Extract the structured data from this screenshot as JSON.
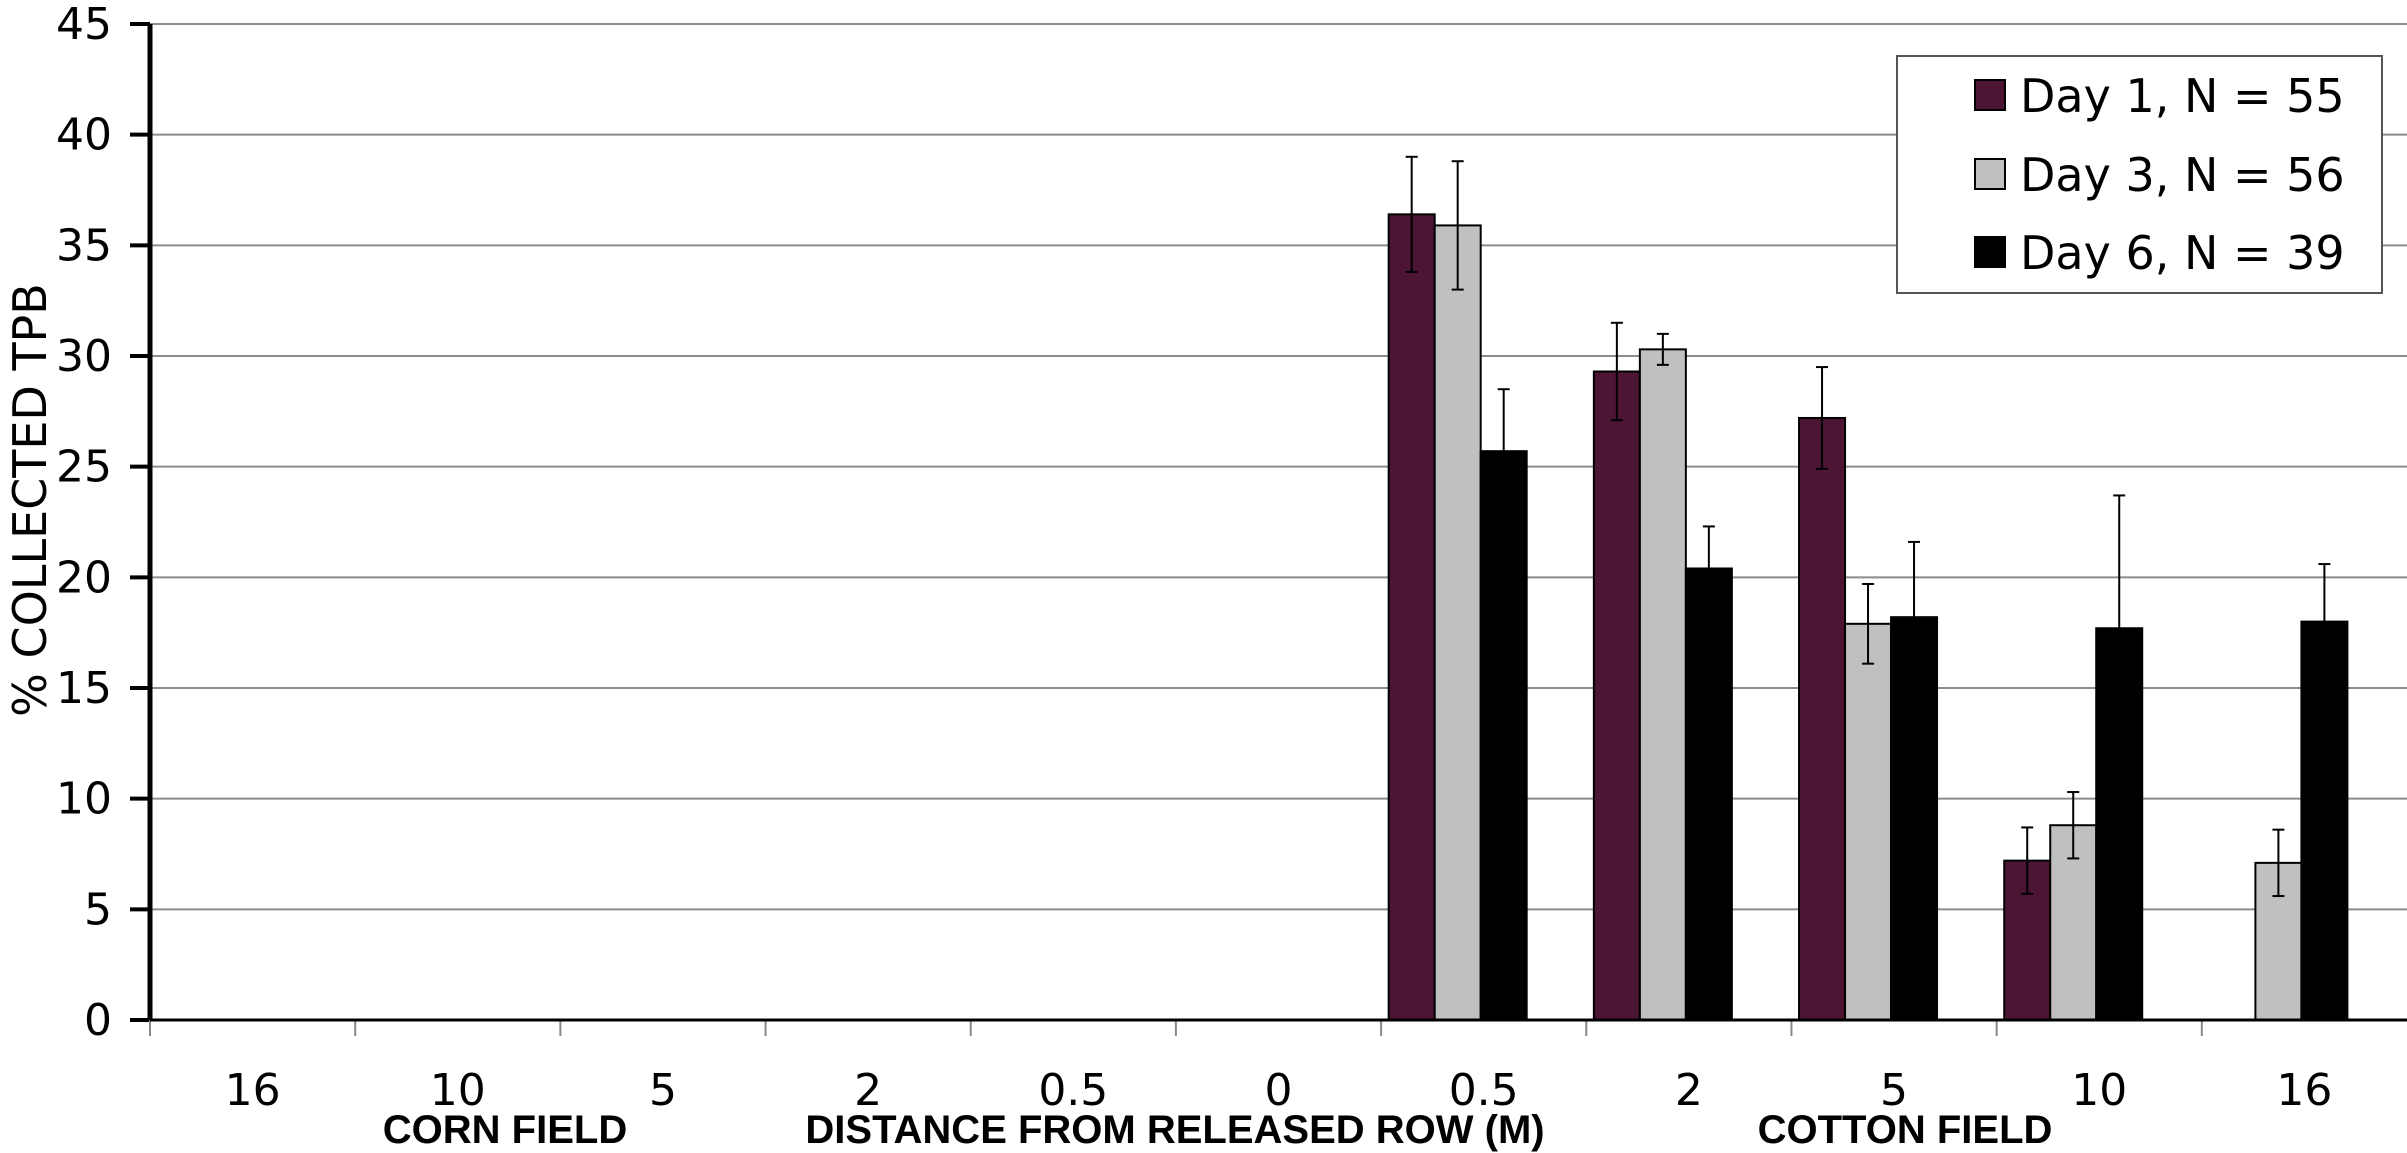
{
  "chart_data": {
    "type": "bar",
    "title": "",
    "ylabel": "% COLLECTED TPB",
    "xlabel": "DISTANCE FROM RELEASED ROW (M)",
    "region_labels": [
      "CORN FIELD",
      "COTTON FIELD"
    ],
    "ylim": [
      0,
      45
    ],
    "yticks": [
      0,
      5,
      10,
      15,
      20,
      25,
      30,
      35,
      40,
      45
    ],
    "grid": true,
    "legend_position": "top-right",
    "categories": [
      "16",
      "10",
      "5",
      "2",
      "0.5",
      "0",
      "0.5",
      "2",
      "5",
      "10",
      "16"
    ],
    "series": [
      {
        "name": "Day 1, N = 55",
        "color": "#4b1533",
        "values": [
          0,
          0,
          0,
          0,
          0,
          0,
          36.4,
          29.3,
          27.2,
          7.2,
          0
        ],
        "errors": [
          0,
          0,
          0,
          0,
          0,
          0,
          2.6,
          2.2,
          2.3,
          1.5,
          0
        ]
      },
      {
        "name": "Day 3, N = 56",
        "color": "#c0c0c0",
        "values": [
          0,
          0,
          0,
          0,
          0,
          0,
          35.9,
          30.3,
          17.9,
          8.8,
          7.1
        ],
        "errors": [
          0,
          0,
          0,
          0,
          0,
          0,
          2.9,
          0.7,
          1.8,
          1.5,
          1.5
        ]
      },
      {
        "name": "Day 6, N = 39",
        "color": "#000000",
        "values": [
          0,
          0,
          0,
          0,
          0,
          0,
          25.7,
          20.4,
          18.2,
          17.7,
          18.0
        ],
        "errors": [
          0,
          0,
          0,
          0,
          0,
          0,
          2.8,
          1.9,
          3.4,
          6.0,
          2.6
        ]
      }
    ]
  }
}
